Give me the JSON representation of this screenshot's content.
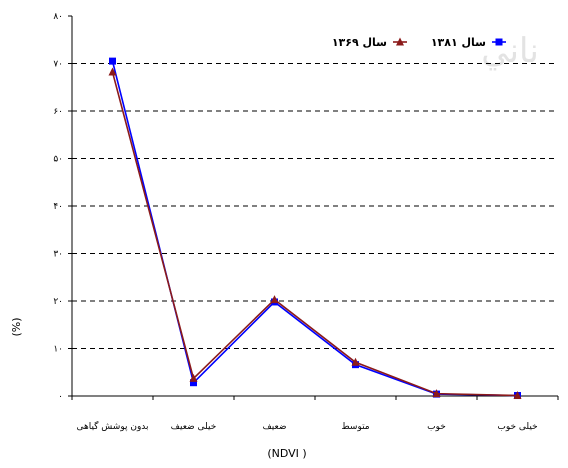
{
  "chart_data": {
    "type": "line",
    "categories": [
      "بدون پوشش گیاهی",
      "خیلی ضعیف",
      "ضعیف",
      "متوسط",
      "خوب",
      "خیلی خوب"
    ],
    "series": [
      {
        "name": "سال ۱۳۸۱",
        "color": "#0000ff",
        "marker": "square",
        "values": [
          70.5,
          2.8,
          19.8,
          6.6,
          0.4,
          0.1
        ]
      },
      {
        "name": "سال ۱۳۶۹",
        "color": "#8b1a1a",
        "marker": "triangle",
        "values": [
          68.2,
          3.7,
          20.3,
          7.1,
          0.5,
          0.1
        ]
      }
    ],
    "ylim": [
      0,
      80
    ],
    "yticks": [
      "۰",
      "۱۰",
      "۲۰",
      "۳۰",
      "۴۰",
      "۵۰",
      "۶۰",
      "۷۰",
      "۸۰"
    ],
    "ylabel": "(%)",
    "xlabel": "(NDVI          )",
    "grid": true,
    "legend_position": "top-right",
    "watermark": "ناني"
  }
}
